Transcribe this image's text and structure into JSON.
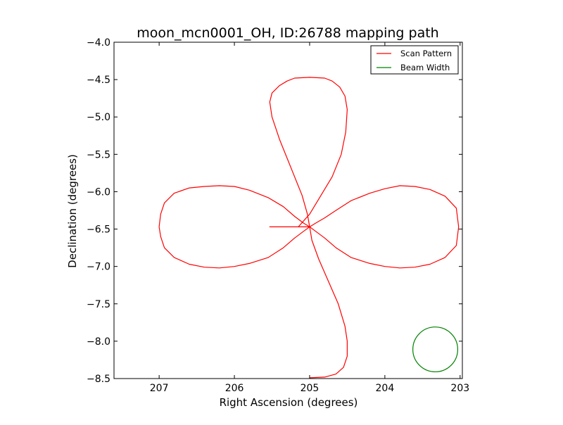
{
  "chart_data": {
    "type": "line",
    "title": "moon_mcn0001_OH, ID:26788 mapping path",
    "xlabel": "Right Ascension (degrees)",
    "ylabel": "Declination (degrees)",
    "xlim": [
      207.6,
      202.97
    ],
    "ylim": [
      -8.5,
      -4.0
    ],
    "x_ticks": [
      207,
      206,
      205,
      204,
      203
    ],
    "x_tick_labels": [
      "207",
      "206",
      "205",
      "204",
      "203"
    ],
    "y_ticks": [
      -4.0,
      -4.5,
      -5.0,
      -5.5,
      -6.0,
      -6.5,
      -7.0,
      -7.5,
      -8.0,
      -8.5
    ],
    "y_tick_labels": [
      "−4.0",
      "−4.5",
      "−5.0",
      "−5.5",
      "−6.0",
      "−6.5",
      "−7.0",
      "−7.5",
      "−8.0",
      "−8.5"
    ],
    "grid": false,
    "legend_position": "upper right",
    "series": [
      {
        "name": "Scan Pattern",
        "color": "#ff0000",
        "x": [
          207.0,
          206.98,
          206.93,
          206.8,
          206.6,
          206.4,
          206.2,
          206.0,
          205.8,
          205.55,
          205.35,
          205.2,
          205.08,
          205.0,
          204.92,
          204.8,
          204.65,
          204.45,
          204.2,
          204.0,
          203.8,
          203.6,
          203.4,
          203.2,
          203.05,
          203.02,
          203.05,
          203.2,
          203.4,
          203.6,
          203.8,
          204.0,
          204.2,
          204.45,
          204.65,
          204.8,
          204.92,
          205.0,
          205.08,
          205.2,
          205.35,
          205.55,
          205.8,
          206.0,
          206.2,
          206.4,
          206.6,
          206.8,
          206.93,
          206.98,
          207.0
        ],
        "y": [
          -6.47,
          -6.3,
          -6.15,
          -6.02,
          -5.95,
          -5.93,
          -5.92,
          -5.93,
          -5.98,
          -6.08,
          -6.2,
          -6.33,
          -6.42,
          -6.47,
          -6.53,
          -6.62,
          -6.75,
          -6.88,
          -6.96,
          -7.0,
          -7.02,
          -7.01,
          -6.97,
          -6.88,
          -6.72,
          -6.47,
          -6.22,
          -6.06,
          -5.97,
          -5.93,
          -5.92,
          -5.96,
          -6.02,
          -6.12,
          -6.25,
          -6.35,
          -6.42,
          -6.47,
          -6.53,
          -6.62,
          -6.75,
          -6.88,
          -6.96,
          -7.0,
          -7.02,
          -7.01,
          -6.97,
          -6.88,
          -6.75,
          -6.6,
          -6.47
        ],
        "x_vertical_loops": [
          205.0,
          205.03,
          205.1,
          205.2,
          205.3,
          205.4,
          205.5,
          205.53,
          205.5,
          205.4,
          205.3,
          205.2,
          205.0,
          204.8,
          204.7,
          204.6,
          204.53,
          204.5,
          204.52,
          204.58,
          204.7,
          204.85,
          205.0,
          205.15,
          205.3,
          205.42,
          205.5,
          205.53,
          205.48,
          205.38,
          205.25,
          205.12,
          205.03,
          205.0,
          204.97,
          204.88,
          204.75,
          204.62,
          204.53,
          204.5,
          204.5,
          204.55,
          204.65,
          204.8,
          205.0
        ],
        "y_vertical_loops": [
          -6.47,
          -6.3,
          -6.05,
          -5.8,
          -5.55,
          -5.3,
          -5.0,
          -4.8,
          -4.68,
          -4.58,
          -4.52,
          -4.48,
          -4.47,
          -4.48,
          -4.52,
          -4.6,
          -4.72,
          -4.9,
          -5.2,
          -5.5,
          -5.8,
          -6.05,
          -6.3,
          -6.47,
          -6.47,
          -6.47,
          -6.47,
          -6.47,
          -6.47,
          -6.47,
          -6.47,
          -6.47,
          -6.47,
          -6.47,
          -6.65,
          -6.9,
          -7.2,
          -7.5,
          -7.8,
          -8.0,
          -8.2,
          -8.35,
          -8.44,
          -8.48,
          -8.49
        ]
      },
      {
        "name": "Beam Width",
        "color": "#008000",
        "center": [
          203.33,
          -8.11
        ],
        "radius": 0.3
      }
    ]
  }
}
